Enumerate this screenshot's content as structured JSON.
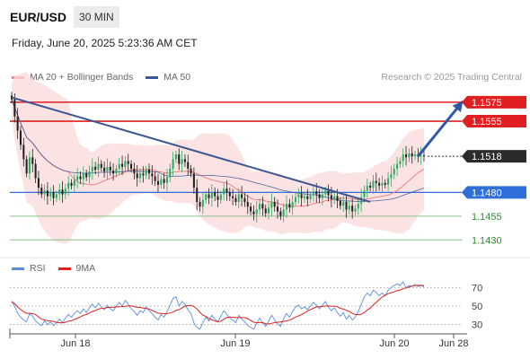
{
  "header": {
    "symbol": "EUR/USD",
    "timeframe": "30 MIN"
  },
  "datetime": "Friday, June 20, 2025 5:23:36 AM CET",
  "legend": [
    {
      "label": "MA 20 + Bollinger Bands",
      "color": "#f08080"
    },
    {
      "label": "MA 50",
      "color": "#3a5795"
    }
  ],
  "credit": "Research © 2025 Trading Central",
  "rsi_legend": [
    {
      "label": "RSI",
      "color": "#5b8ed8"
    },
    {
      "label": "9MA",
      "color": "#e02020"
    }
  ],
  "colors": {
    "bull": "#27ae60",
    "bear": "#222222",
    "resistance": "#e02020",
    "pivot": "#2f6fd8",
    "support": "#8cc08c",
    "arrow": "#2f58a8"
  },
  "chart_data": [
    {
      "type": "candlestick",
      "title": "EUR/USD",
      "x_ticks": [
        "Jun 18",
        "Jun 19",
        "Jun 20",
        "Jun 28"
      ],
      "ylim": [
        1.1418,
        1.159
      ],
      "price_levels": [
        {
          "value": 1.1575,
          "label": "1.1575",
          "kind": "resistance"
        },
        {
          "value": 1.1555,
          "label": "1.1555",
          "kind": "resistance"
        },
        {
          "value": 1.1518,
          "label": "1.1518",
          "kind": "last"
        },
        {
          "value": 1.148,
          "label": "1.1480",
          "kind": "pivot"
        },
        {
          "value": 1.1455,
          "label": "1.1455",
          "kind": "support"
        },
        {
          "value": 1.143,
          "label": "1.1430",
          "kind": "support"
        }
      ],
      "trendline": [
        [
          0,
          1.158
        ],
        [
          120,
          1.147
        ]
      ],
      "arrow": [
        [
          136,
          1.1518
        ],
        [
          151,
          1.1576
        ]
      ],
      "closes": [
        1.1578,
        1.156,
        1.1545,
        1.153,
        1.1515,
        1.15,
        1.1517,
        1.151,
        1.1495,
        1.1485,
        1.1478,
        1.1482,
        1.1476,
        1.148,
        1.1474,
        1.1478,
        1.1483,
        1.1478,
        1.1484,
        1.149,
        1.1487,
        1.1493,
        1.1497,
        1.1494,
        1.15,
        1.1496,
        1.1502,
        1.1507,
        1.1504,
        1.151,
        1.1506,
        1.1502,
        1.1507,
        1.1503,
        1.15,
        1.1505,
        1.151,
        1.1507,
        1.1513,
        1.151,
        1.1505,
        1.15,
        1.1495,
        1.15,
        1.1498,
        1.1504,
        1.15,
        1.1497,
        1.1492,
        1.1488,
        1.1494,
        1.149,
        1.1496,
        1.1505,
        1.1515,
        1.152,
        1.151,
        1.1515,
        1.1512,
        1.1505,
        1.15,
        1.1485,
        1.147,
        1.1465,
        1.1472,
        1.1478,
        1.1474,
        1.148,
        1.1476,
        1.1472,
        1.1478,
        1.1484,
        1.148,
        1.1476,
        1.1474,
        1.147,
        1.1478,
        1.1474,
        1.147,
        1.1465,
        1.146,
        1.1457,
        1.1462,
        1.1468,
        1.1463,
        1.1458,
        1.1464,
        1.147,
        1.1465,
        1.146,
        1.1455,
        1.1462,
        1.1468,
        1.1464,
        1.147,
        1.1475,
        1.1478,
        1.1474,
        1.1476,
        1.1473,
        1.1477,
        1.1481,
        1.1478,
        1.1474,
        1.1478,
        1.1482,
        1.1477,
        1.1473,
        1.1476,
        1.1471,
        1.1466,
        1.147,
        1.1462,
        1.1466,
        1.146,
        1.1463,
        1.1468,
        1.1475,
        1.1482,
        1.1487,
        1.1485,
        1.1492,
        1.149,
        1.1487,
        1.149,
        1.1488,
        1.1495,
        1.1499,
        1.1505,
        1.151,
        1.1513,
        1.152,
        1.1517,
        1.1521,
        1.1518,
        1.152,
        1.1518,
        1.1519,
        1.1518
      ],
      "rsi_ylim": [
        20,
        80
      ],
      "rsi_ticks": [
        70,
        50,
        30
      ],
      "rsi": [
        55,
        50,
        42,
        38,
        35,
        33,
        42,
        39,
        34,
        31,
        29,
        34,
        30,
        33,
        29,
        32,
        36,
        32,
        37,
        41,
        38,
        42,
        45,
        42,
        47,
        43,
        48,
        52,
        48,
        53,
        49,
        46,
        51,
        47,
        45,
        50,
        54,
        50,
        56,
        52,
        47,
        44,
        40,
        45,
        43,
        49,
        45,
        42,
        38,
        35,
        41,
        38,
        44,
        51,
        58,
        60,
        50,
        55,
        52,
        46,
        42,
        32,
        27,
        25,
        32,
        38,
        34,
        40,
        36,
        33,
        39,
        45,
        41,
        37,
        35,
        32,
        40,
        36,
        33,
        29,
        27,
        25,
        31,
        37,
        32,
        28,
        34,
        40,
        35,
        31,
        28,
        36,
        42,
        38,
        44,
        49,
        51,
        47,
        49,
        46,
        50,
        54,
        51,
        47,
        51,
        55,
        49,
        45,
        48,
        43,
        39,
        43,
        36,
        40,
        35,
        38,
        44,
        52,
        60,
        64,
        61,
        67,
        65,
        61,
        64,
        61,
        67,
        70,
        72,
        74,
        72,
        76,
        70,
        72,
        71,
        73,
        71,
        72,
        71
      ]
    }
  ]
}
